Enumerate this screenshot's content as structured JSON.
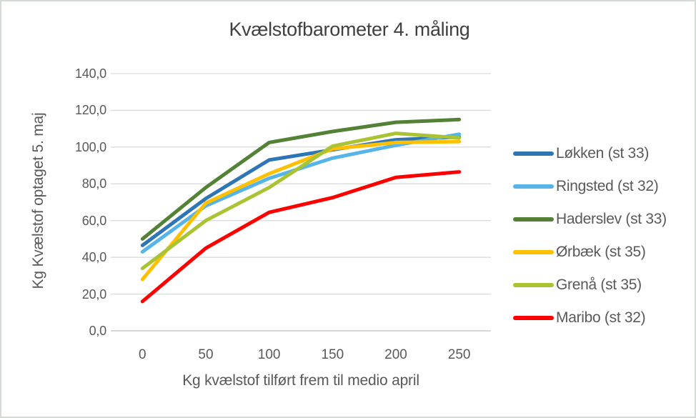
{
  "frame": {
    "background": "#ffffff",
    "border_color": "#d4dad4"
  },
  "text_colors": {
    "title": "#404040",
    "axis_labels": "#595959"
  },
  "grid_colors": {
    "gridline": "#d9d9d9",
    "baseline": "#bfbfbf"
  },
  "chart_data": {
    "type": "line",
    "title": "Kvælstofbarometer 4. måling",
    "xlabel": "Kg kvælstof tilført frem til medio april",
    "ylabel": "Kg Kvælstof optaget 5. maj",
    "categories": [
      0,
      50,
      100,
      150,
      200,
      250
    ],
    "x_tick_labels": [
      "0",
      "50",
      "100",
      "150",
      "200",
      "250"
    ],
    "y_tick_labels": [
      "0,0",
      "20,0",
      "40,0",
      "60,0",
      "80,0",
      "100,0",
      "120,0",
      "140,0"
    ],
    "ylim": [
      0,
      140
    ],
    "y_step": 20,
    "grid": true,
    "legend_position": "right",
    "line_width": 5,
    "series": [
      {
        "name": "Løkken (st 33)",
        "color": "#2E75B6",
        "values": [
          46.5,
          72,
          93,
          98.5,
          104,
          105.5
        ]
      },
      {
        "name": "Ringsted (st 32)",
        "color": "#56B4E9",
        "values": [
          43,
          68,
          83,
          94,
          101,
          107
        ]
      },
      {
        "name": "Haderslev (st 33)",
        "color": "#538135",
        "values": [
          50,
          78,
          102.5,
          108.5,
          113.5,
          115
        ]
      },
      {
        "name": "Ørbæk (st 35)",
        "color": "#FFC000",
        "values": [
          28,
          69.5,
          85.5,
          99,
          102.5,
          103
        ]
      },
      {
        "name": "Grenå (st 35)",
        "color": "#AAC332",
        "values": [
          34,
          60,
          78,
          100.5,
          107.5,
          105
        ]
      },
      {
        "name": "Maribo (st 32)",
        "color": "#FF0000",
        "values": [
          16,
          45,
          64.5,
          72.5,
          83.5,
          86.5
        ]
      }
    ]
  }
}
